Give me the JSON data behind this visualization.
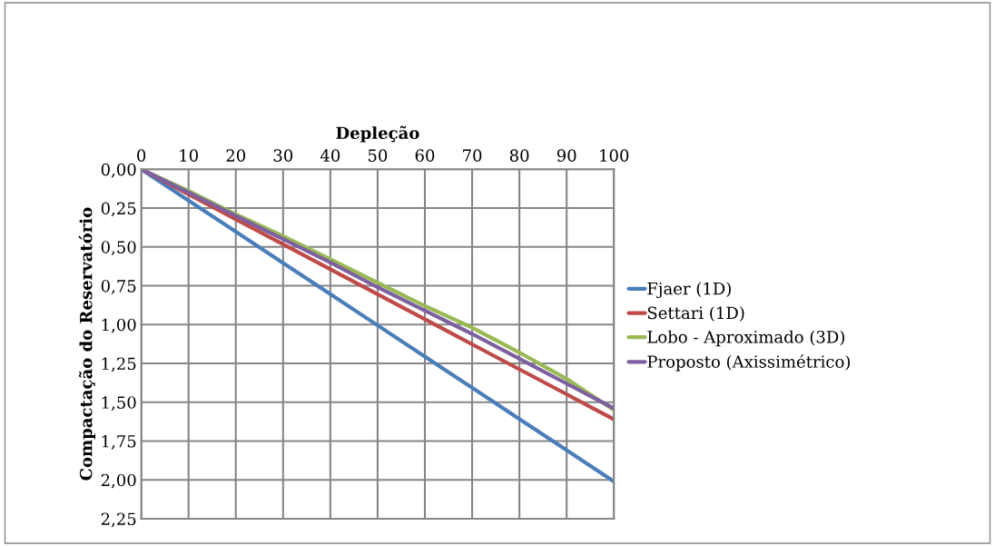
{
  "chart_data": {
    "type": "line",
    "xlabel": "Depleção",
    "ylabel": "Compactação do Reservatório",
    "x": [
      0,
      10,
      20,
      30,
      40,
      50,
      60,
      70,
      80,
      90,
      95,
      100
    ],
    "series": [
      {
        "name": "Fjaer (1D)",
        "color": "#4a7ebb",
        "values": [
          0,
          0.201,
          0.402,
          0.603,
          0.804,
          1.005,
          1.206,
          1.407,
          1.608,
          1.809,
          1.91,
          2.01
        ]
      },
      {
        "name": "Settari (1D)",
        "color": "#be4b48",
        "values": [
          0,
          0.161,
          0.322,
          0.483,
          0.644,
          0.805,
          0.966,
          1.127,
          1.288,
          1.449,
          1.53,
          1.61
        ]
      },
      {
        "name": "Lobo - Aproximado (3D)",
        "color": "#98b954",
        "values": [
          0,
          0.14,
          0.29,
          0.43,
          0.58,
          0.73,
          0.88,
          1.02,
          1.18,
          1.35,
          1.45,
          1.55
        ]
      },
      {
        "name": "Proposto (Axissimétrico)",
        "color": "#7d60a0",
        "values": [
          0,
          0.15,
          0.3,
          0.45,
          0.6,
          0.76,
          0.91,
          1.06,
          1.22,
          1.38,
          1.46,
          1.54
        ]
      }
    ],
    "xlim": [
      0,
      100
    ],
    "xticks": [
      0,
      10,
      20,
      30,
      40,
      50,
      60,
      70,
      80,
      90,
      100
    ],
    "ylim": [
      2.25,
      0
    ],
    "yticks": [
      {
        "value": 0,
        "label": "0,00"
      },
      {
        "value": 0.25,
        "label": "0,25"
      },
      {
        "value": 0.5,
        "label": "0,50"
      },
      {
        "value": 0.75,
        "label": "0,75"
      },
      {
        "value": 1,
        "label": "1,00"
      },
      {
        "value": 1.25,
        "label": "1,25"
      },
      {
        "value": 1.5,
        "label": "1,50"
      },
      {
        "value": 1.75,
        "label": "1,75"
      },
      {
        "value": 2,
        "label": "2,00"
      },
      {
        "value": 2.25,
        "label": "2,25"
      }
    ],
    "grid": true,
    "legend": "right",
    "marker": "none",
    "line_style": "solid"
  }
}
